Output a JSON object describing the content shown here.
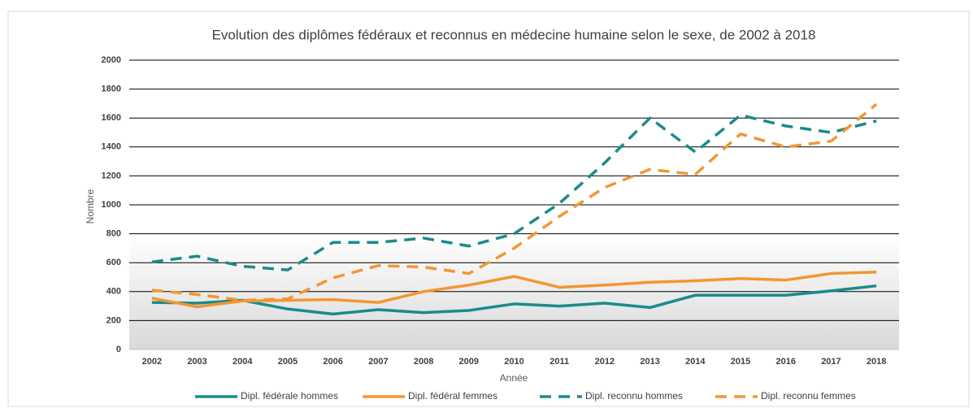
{
  "chart_data": {
    "type": "line",
    "title": "Evolution des diplômes fédéraux et reconnus en médecine humaine selon le sexe, de 2002 à 2018",
    "x_label": "Année",
    "y_label": "Nombre",
    "categories": [
      "2002",
      "2003",
      "2004",
      "2005",
      "2006",
      "2007",
      "2008",
      "2009",
      "2010",
      "2011",
      "2012",
      "2013",
      "2014",
      "2015",
      "2016",
      "2017",
      "2018"
    ],
    "series": [
      {
        "name": "Dipl. fédérale hommes",
        "color": "#1b8b8b",
        "dashed": false,
        "values": [
          325,
          320,
          340,
          280,
          245,
          275,
          255,
          270,
          315,
          300,
          320,
          290,
          375,
          375,
          375,
          405,
          440
        ]
      },
      {
        "name": "Dipl. fédéral femmes",
        "color": "#f39631",
        "dashed": false,
        "values": [
          355,
          295,
          335,
          340,
          345,
          325,
          400,
          445,
          505,
          430,
          445,
          465,
          475,
          490,
          480,
          525,
          535
        ]
      },
      {
        "name": "Dipl. reconnu hommes",
        "color": "#1b8b8b",
        "dashed": true,
        "values": [
          605,
          645,
          575,
          550,
          740,
          740,
          770,
          715,
          800,
          1010,
          1290,
          1600,
          1365,
          1620,
          1545,
          1500,
          1580
        ]
      },
      {
        "name": "Dipl. reconnu femmes",
        "color": "#f39631",
        "dashed": true,
        "values": [
          410,
          380,
          340,
          350,
          495,
          580,
          570,
          525,
          700,
          920,
          1120,
          1245,
          1210,
          1490,
          1400,
          1440,
          1695
        ]
      }
    ],
    "ylim": [
      0,
      2000
    ],
    "yticks": [
      0,
      200,
      400,
      600,
      800,
      1000,
      1200,
      1400,
      1600,
      1800,
      2000
    ],
    "grid": true,
    "legend": "bottom"
  }
}
